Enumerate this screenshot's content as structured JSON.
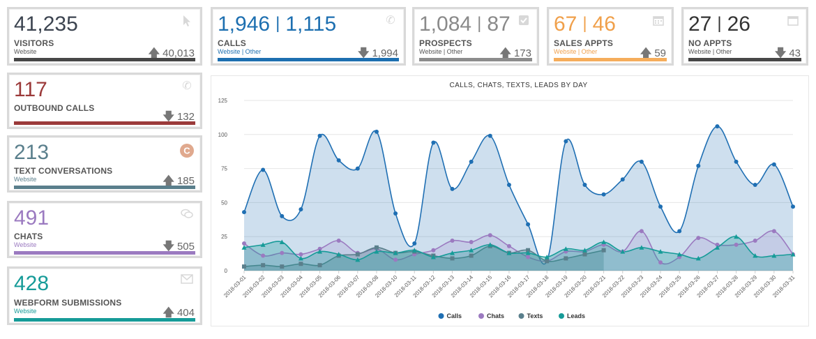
{
  "cards": {
    "visitors": {
      "value": "41,235",
      "title": "VISITORS",
      "sub": "Website",
      "trend_dir": "up",
      "trend": "40,013",
      "color": "#3c4450",
      "bar": "#474747"
    },
    "calls": {
      "value1": "1,946",
      "sep": "|",
      "value2": "1,115",
      "title": "CALLS",
      "sub": "Website | Other",
      "trend_dir": "down",
      "trend": "1,994",
      "color": "#1d6fb0",
      "bar": "#1d6fb0"
    },
    "prospects": {
      "value1": "1,084",
      "sep": "|",
      "value2": "87",
      "title": "PROSPECTS",
      "sub": "Website | Other",
      "trend_dir": "up",
      "trend": "173",
      "color": "#8a8a8a",
      "bar": "#8c8c8c"
    },
    "sales_appts": {
      "value1": "67",
      "sep": "|",
      "value2": "46",
      "title": "SALES APPTS",
      "sub": "Website | Other",
      "trend_dir": "up",
      "trend": "59",
      "color": "#f0a04b",
      "bar": "#f5ad5b"
    },
    "no_appts": {
      "value1": "27",
      "sep": "|",
      "value2": "26",
      "title": "NO APPTS",
      "sub": "Website | Other",
      "trend_dir": "down",
      "trend": "43",
      "color": "#333333",
      "bar": "#474747"
    },
    "outbound": {
      "value": "117",
      "title": "OUTBOUND CALLS",
      "sub": "",
      "trend_dir": "down",
      "trend": "132",
      "color": "#9b3a3a",
      "bar": "#9b3a3a"
    },
    "texts": {
      "value": "213",
      "title": "TEXT CONVERSATIONS",
      "sub": "Website",
      "trend_dir": "up",
      "trend": "185",
      "color": "#5a7f8c",
      "bar": "#5a7f8c"
    },
    "chats": {
      "value": "491",
      "title": "CHATS",
      "sub": "Website",
      "trend_dir": "down",
      "trend": "505",
      "color": "#9b7ac0",
      "bar": "#9b7ac0"
    },
    "webform": {
      "value": "428",
      "title": "WEBFORM SUBMISSIONS",
      "sub": "Website",
      "trend_dir": "up",
      "trend": "404",
      "color": "#169b98",
      "bar": "#169b98"
    }
  },
  "chart_data": {
    "type": "area",
    "title": "CALLS, CHATS, TEXTS, LEADS BY DAY",
    "ylim": [
      0,
      125
    ],
    "yticks": [
      0,
      25,
      50,
      75,
      100,
      125
    ],
    "grid": true,
    "legend_position": "bottom",
    "x": [
      "2018-03-01",
      "2018-03-02",
      "2018-03-03",
      "2018-03-04",
      "2018-03-05",
      "2018-03-06",
      "2018-03-07",
      "2018-03-08",
      "2018-03-10",
      "2018-03-11",
      "2018-03-12",
      "2018-03-13",
      "2018-03-14",
      "2018-03-15",
      "2018-03-16",
      "2018-03-17",
      "2018-03-18",
      "2018-03-19",
      "2018-03-20",
      "2018-03-21",
      "2018-03-22",
      "2018-03-23",
      "2018-03-24",
      "2018-03-25",
      "2018-03-26",
      "2018-03-27",
      "2018-03-28",
      "2018-03-29",
      "2018-03-30",
      "2018-03-31"
    ],
    "series": [
      {
        "name": "Calls",
        "color": "#1f6fb3",
        "marker": "circle",
        "values": [
          43,
          74,
          40,
          45,
          99,
          81,
          75,
          102,
          42,
          20,
          94,
          60,
          80,
          99,
          63,
          34,
          7,
          95,
          63,
          56,
          67,
          80,
          47,
          29,
          77,
          106,
          80,
          63,
          78,
          47
        ]
      },
      {
        "name": "Chats",
        "color": "#9b7ac0",
        "marker": "circle",
        "values": [
          20,
          11,
          13,
          12,
          16,
          22,
          13,
          16,
          8,
          12,
          15,
          22,
          21,
          26,
          18,
          10,
          7,
          14,
          14,
          19,
          14,
          29,
          6,
          10,
          24,
          19,
          19,
          22,
          29,
          12
        ]
      },
      {
        "name": "Texts",
        "color": "#5a7f8c",
        "marker": "square",
        "values": [
          3,
          4,
          3,
          5,
          4,
          11,
          12,
          17,
          13,
          14,
          11,
          9,
          11,
          18,
          13,
          15,
          7,
          9,
          12,
          15,
          null,
          null,
          null,
          null,
          null,
          null,
          null,
          null,
          null,
          null
        ]
      },
      {
        "name": "Leads",
        "color": "#169b98",
        "marker": "triangle",
        "values": [
          17,
          19,
          21,
          9,
          14,
          12,
          8,
          14,
          13,
          15,
          10,
          13,
          15,
          19,
          13,
          13,
          10,
          16,
          15,
          21,
          14,
          17,
          14,
          12,
          9,
          17,
          25,
          11,
          11,
          12
        ]
      }
    ]
  }
}
